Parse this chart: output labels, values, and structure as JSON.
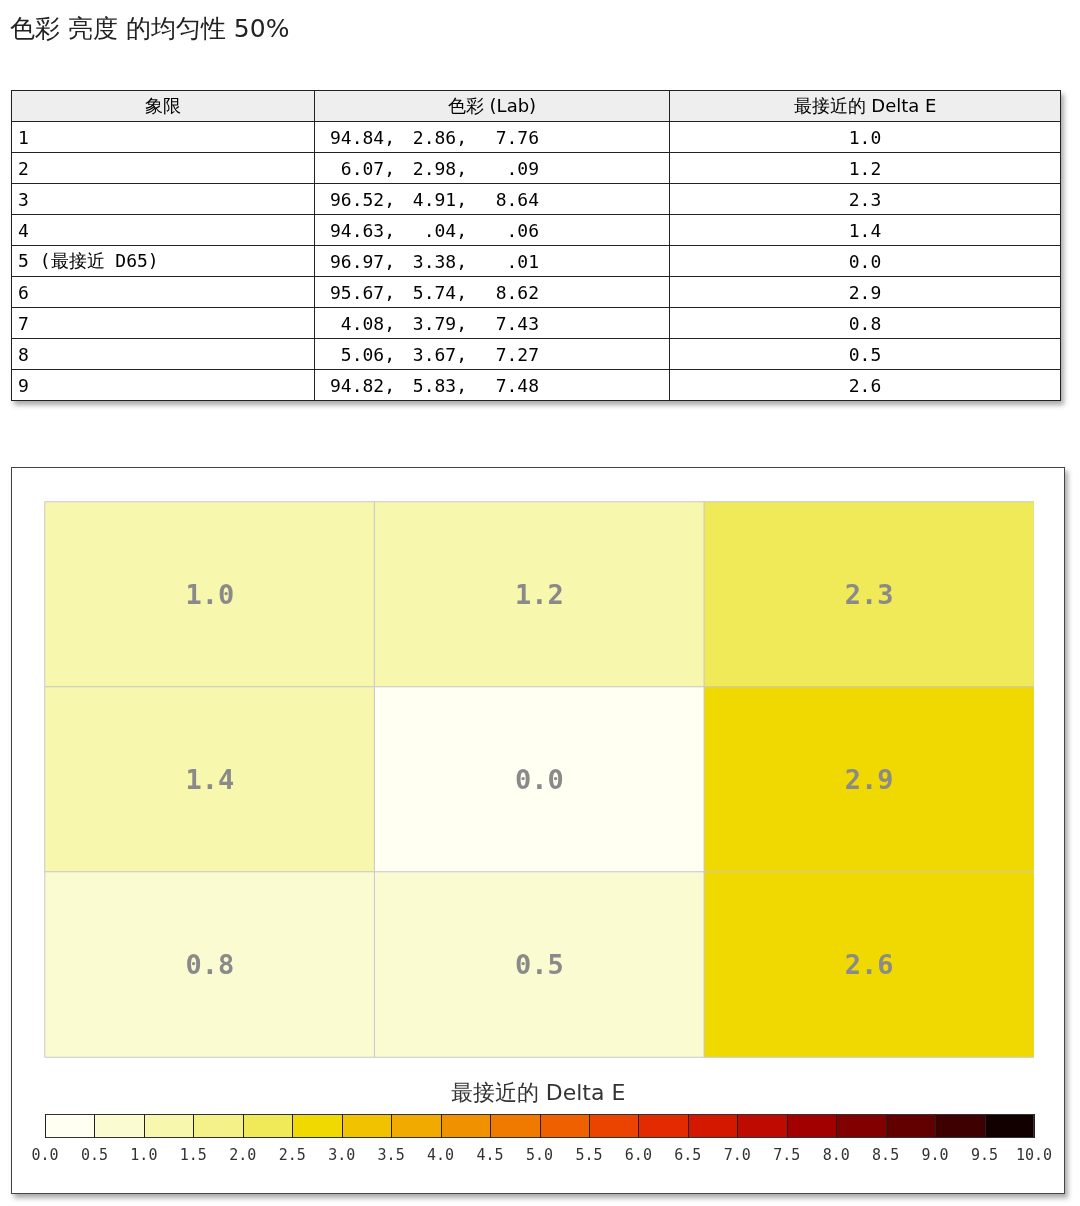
{
  "chart_data": [
    {
      "type": "other",
      "title": "色彩 亮度 的均匀性 50%",
      "xlabel": "象限",
      "categories": [
        "1",
        "2",
        "3",
        "4",
        "5 (最接近 D65)",
        "6",
        "7",
        "8",
        "9"
      ],
      "series": [
        {
          "name": "色彩 (Lab)",
          "values": [
            94.84,
            6.07,
            96.52,
            94.63,
            96.97,
            95.67,
            4.08,
            5.06,
            94.82
          ],
          "value_labels": [
            "94.84,",
            "6.07,",
            "96.52,",
            "94.63,",
            "96.97,",
            "95.67,",
            "4.08,",
            "5.06,",
            "94.82,"
          ]
        },
        {
          "values": [
            2.86,
            2.98,
            4.91,
            0.04,
            3.38,
            5.74,
            3.79,
            3.67,
            5.83
          ],
          "value_labels": [
            "2.86,",
            "2.98,",
            "4.91,",
            ".04,",
            "3.38,",
            "5.74,",
            "3.79,",
            "3.67,",
            "5.83,"
          ]
        },
        {
          "values": [
            7.76,
            0.09,
            8.64,
            0.06,
            0.01,
            8.62,
            7.43,
            7.27,
            7.48
          ],
          "value_labels": [
            "7.76",
            ".09",
            "8.64",
            ".06",
            ".01",
            "8.62",
            "7.43",
            "7.27",
            "7.48"
          ]
        },
        {
          "name": "最接近的 Delta E",
          "values": [
            1.0,
            1.2,
            2.3,
            1.4,
            0.0,
            2.9,
            0.8,
            0.5,
            2.6
          ],
          "value_labels": [
            "1.0",
            "1.2",
            "2.3",
            "1.4",
            "0.0",
            "2.9",
            "0.8",
            "0.5",
            "2.6"
          ]
        }
      ]
    },
    {
      "type": "heatmap",
      "categories": [
        null,
        null,
        null
      ],
      "y_categories": [
        null,
        null,
        null
      ],
      "cells": [
        [
          1.0,
          1.2,
          2.3
        ],
        [
          1.4,
          0.0,
          2.9
        ],
        [
          0.8,
          0.5,
          2.6
        ]
      ],
      "cell_labels": [
        [
          "1.0",
          "1.2",
          "2.3"
        ],
        [
          "1.4",
          "0.0",
          "2.9"
        ],
        [
          "0.8",
          "0.5",
          "2.6"
        ]
      ],
      "clabel": "最接近的 Delta E",
      "clim": [
        0,
        10
      ],
      "cticks": [
        {
          "value": 0,
          "label": "0.0"
        },
        {
          "value": 0.5,
          "label": "0.5"
        },
        {
          "value": 1,
          "label": "1.0"
        },
        {
          "value": 1.5,
          "label": "1.5"
        },
        {
          "value": 2,
          "label": "2.0"
        },
        {
          "value": 2.5,
          "label": "2.5"
        },
        {
          "value": 3,
          "label": "3.0"
        },
        {
          "value": 3.5,
          "label": "3.5"
        },
        {
          "value": 4,
          "label": "4.0"
        },
        {
          "value": 4.5,
          "label": "4.5"
        },
        {
          "value": 5,
          "label": "5.0"
        },
        {
          "value": 5.5,
          "label": "5.5"
        },
        {
          "value": 6,
          "label": "6.0"
        },
        {
          "value": 6.5,
          "label": "6.5"
        },
        {
          "value": 7,
          "label": "7.0"
        },
        {
          "value": 7.5,
          "label": "7.5"
        },
        {
          "value": 8,
          "label": "8.0"
        },
        {
          "value": 8.5,
          "label": "8.5"
        },
        {
          "value": 9,
          "label": "9.0"
        },
        {
          "value": 9.5,
          "label": "9.5"
        },
        {
          "value": 10,
          "label": "10.0"
        }
      ]
    }
  ]
}
